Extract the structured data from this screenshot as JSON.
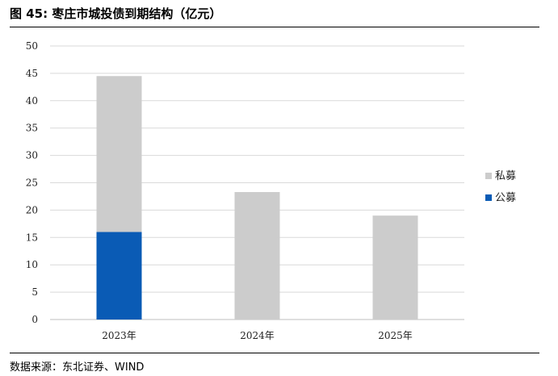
{
  "header": {
    "title": "图 45: 枣庄市城投债到期结构（亿元）"
  },
  "footer": {
    "source": "数据来源：东北证券、WIND"
  },
  "chart_data": {
    "type": "bar",
    "stacked": true,
    "categories": [
      "2023年",
      "2024年",
      "2025年"
    ],
    "series": [
      {
        "name": "公募",
        "values": [
          16,
          0,
          0
        ],
        "color": "#0a5bb5"
      },
      {
        "name": "私募",
        "values": [
          28.5,
          23.3,
          19
        ],
        "color": "#cccccc"
      }
    ],
    "ylim": [
      0,
      50
    ],
    "yticks": [
      0,
      5,
      10,
      15,
      20,
      25,
      30,
      35,
      40,
      45,
      50
    ],
    "grid": true,
    "legend_position": "right",
    "legend_order": [
      "私募",
      "公募"
    ]
  }
}
